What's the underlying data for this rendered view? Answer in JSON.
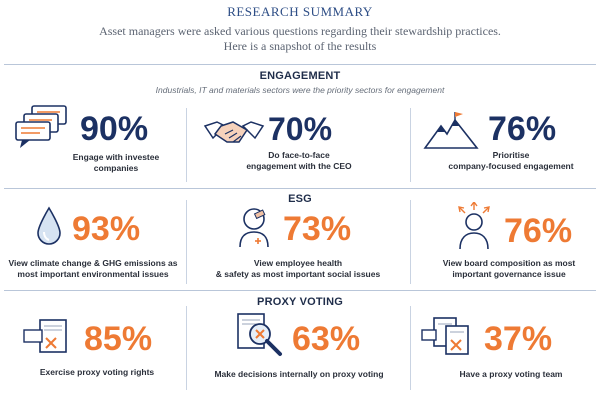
{
  "header": {
    "title": "RESEARCH SUMMARY",
    "intro_line1": "Asset managers were asked various questions regarding their stewardship practices.",
    "intro_line2": "Here is a snapshot of the results"
  },
  "engagement": {
    "title": "ENGAGEMENT",
    "subtitle": "Industrials, IT and materials sectors were the priority sectors for engagement",
    "items": [
      {
        "icon": "speech-bubbles-icon",
        "value": "90%",
        "caption_line1": "Engage with investee",
        "caption_line2": "companies"
      },
      {
        "icon": "handshake-icon",
        "value": "70%",
        "caption_line1": "Do face-to-face",
        "caption_line2": "engagement with the CEO"
      },
      {
        "icon": "mountain-flag-icon",
        "value": "76%",
        "caption_line1": "Prioritise",
        "caption_line2": "company-focused engagement"
      }
    ]
  },
  "esg": {
    "title": "ESG",
    "items": [
      {
        "icon": "water-drop-icon",
        "value": "93%",
        "caption_line1": "View climate change & GHG emissions as",
        "caption_line2": "most important environmental issues"
      },
      {
        "icon": "person-bandage-icon",
        "value": "73%",
        "caption_line1": "View employee health",
        "caption_line2": "& safety as most important social issues"
      },
      {
        "icon": "person-arrows-icon",
        "value": "76%",
        "caption_line1": "View board composition as most",
        "caption_line2": "important governance issue"
      }
    ]
  },
  "proxy_voting": {
    "title": "PROXY VOTING",
    "items": [
      {
        "icon": "ballot-box-icon",
        "value": "85%",
        "caption_line1": "Exercise proxy voting rights"
      },
      {
        "icon": "magnifier-document-icon",
        "value": "63%",
        "caption_line1": "Make decisions internally on proxy voting"
      },
      {
        "icon": "ballot-team-icon",
        "value": "37%",
        "caption_line1": "Have a proxy voting team"
      }
    ]
  },
  "colors": {
    "navy": "#1c3163",
    "orange": "#ee7a34",
    "rule": "#b9c6d9"
  }
}
